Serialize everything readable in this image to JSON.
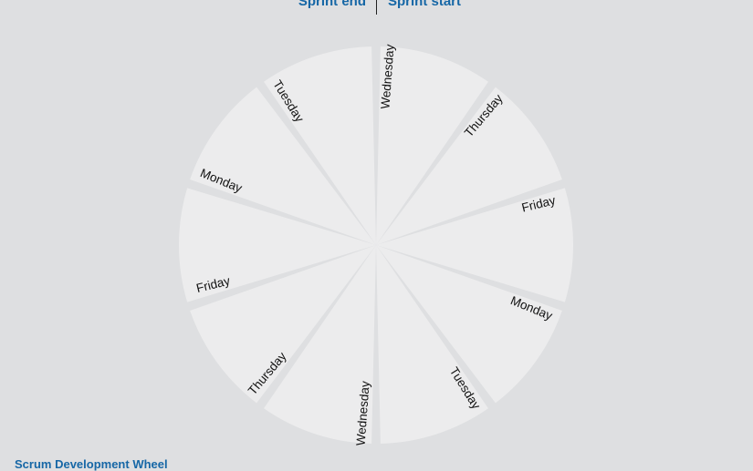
{
  "header": {
    "sprint_end": "Sprint end",
    "sprint_start": "Sprint start"
  },
  "footer": {
    "title": "Scrum Development Wheel"
  },
  "wheel": {
    "segments": [
      "Wednesday",
      "Thursday",
      "Friday",
      "Monday",
      "Tuesday",
      "Wednesday",
      "Thursday",
      "Friday",
      "Monday",
      "Tuesday"
    ]
  },
  "colors": {
    "background": "#dedfe1",
    "segment_fill": "#ececed",
    "accent": "#1667a6"
  }
}
